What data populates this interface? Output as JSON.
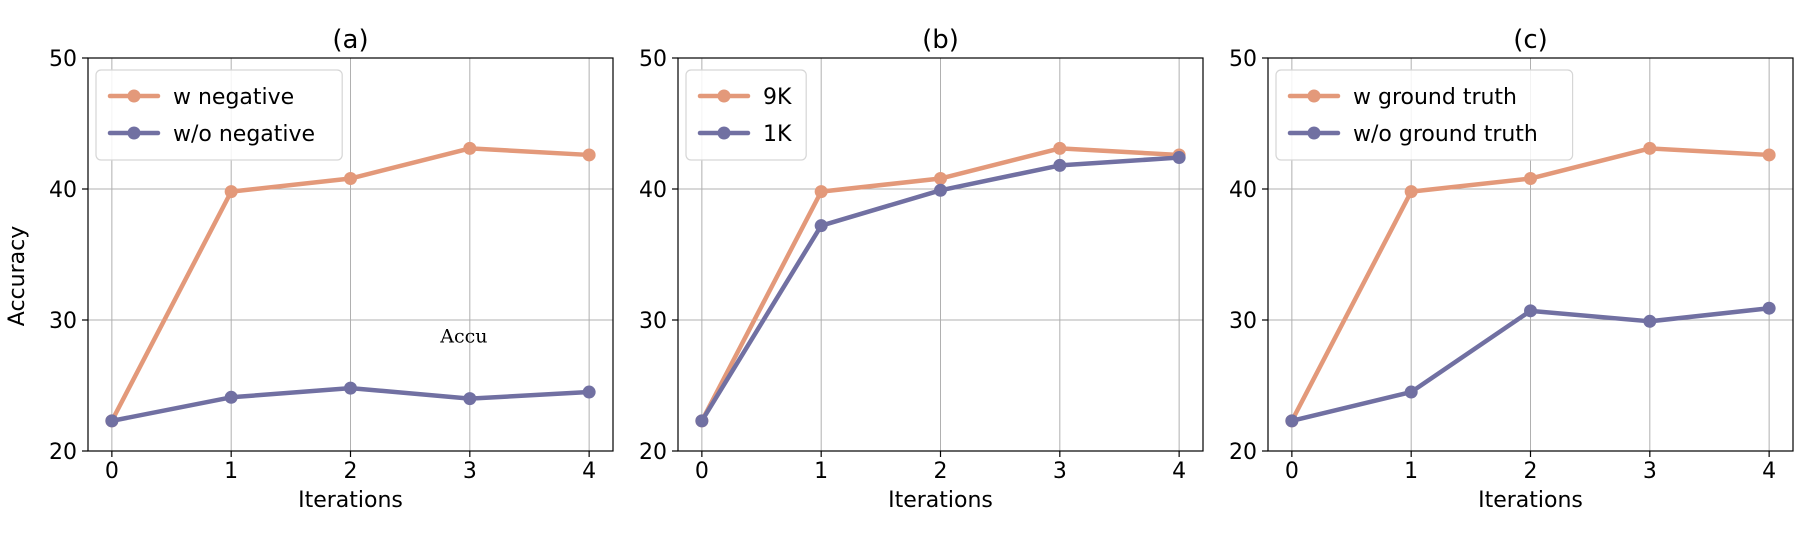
{
  "figure": {
    "ylabel": "Accuracy"
  },
  "chart_data": [
    {
      "type": "line",
      "title": "(a)",
      "xlabel": "Iterations",
      "ylabel": "Accuracy",
      "x": [
        0,
        1,
        2,
        3,
        4
      ],
      "xlim": [
        -0.2,
        4.2
      ],
      "ylim": [
        20,
        50
      ],
      "xticks": [
        0,
        1,
        2,
        3,
        4
      ],
      "yticks": [
        20,
        30,
        40,
        50
      ],
      "grid": true,
      "legend_position": "top-left",
      "series": [
        {
          "name": "w negative",
          "color": "#E3997A",
          "values": [
            22.3,
            39.8,
            40.8,
            43.1,
            42.6
          ]
        },
        {
          "name": "w/o negative",
          "color": "#7170A2",
          "values": [
            22.3,
            24.1,
            24.8,
            24.0,
            24.5
          ]
        }
      ],
      "annotations": [
        {
          "text": "Accu",
          "x": 2.95,
          "y": 28.3
        }
      ]
    },
    {
      "type": "line",
      "title": "(b)",
      "xlabel": "Iterations",
      "ylabel": "",
      "x": [
        0,
        1,
        2,
        3,
        4
      ],
      "xlim": [
        -0.2,
        4.2
      ],
      "ylim": [
        20,
        50
      ],
      "xticks": [
        0,
        1,
        2,
        3,
        4
      ],
      "yticks": [
        20,
        30,
        40,
        50
      ],
      "grid": true,
      "legend_position": "top-left",
      "series": [
        {
          "name": "9K",
          "color": "#E3997A",
          "values": [
            22.3,
            39.8,
            40.8,
            43.1,
            42.6
          ]
        },
        {
          "name": "1K",
          "color": "#7170A2",
          "values": [
            22.3,
            37.2,
            39.9,
            41.8,
            42.4
          ]
        }
      ],
      "annotations": []
    },
    {
      "type": "line",
      "title": "(c)",
      "xlabel": "Iterations",
      "ylabel": "",
      "x": [
        0,
        1,
        2,
        3,
        4
      ],
      "xlim": [
        -0.2,
        4.2
      ],
      "ylim": [
        20,
        50
      ],
      "xticks": [
        0,
        1,
        2,
        3,
        4
      ],
      "yticks": [
        20,
        30,
        40,
        50
      ],
      "grid": true,
      "legend_position": "top-left",
      "series": [
        {
          "name": "w ground truth",
          "color": "#E3997A",
          "values": [
            22.3,
            39.8,
            40.8,
            43.1,
            42.6
          ]
        },
        {
          "name": "w/o ground truth",
          "color": "#7170A2",
          "values": [
            22.3,
            24.5,
            30.7,
            29.9,
            30.9
          ]
        }
      ],
      "annotations": []
    }
  ]
}
